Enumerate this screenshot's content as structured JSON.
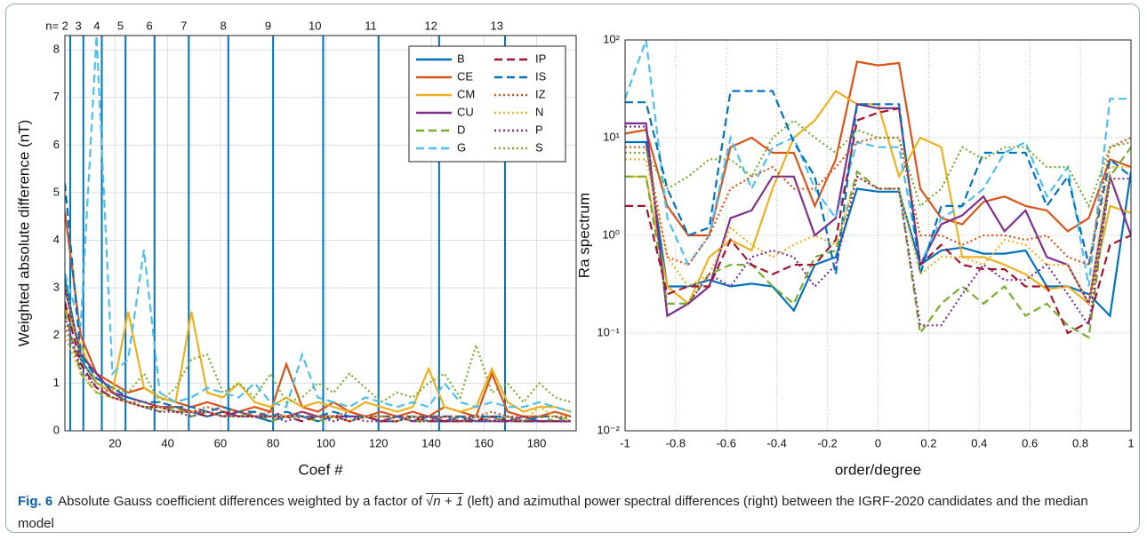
{
  "chart_data": [
    {
      "type": "line",
      "xlabel": "Coef #",
      "ylabel": "Weighted absolute difference (nT)",
      "xlim": [
        1,
        195
      ],
      "ylim": [
        0,
        8.3
      ],
      "xticks": [
        20,
        40,
        60,
        80,
        100,
        120,
        140,
        160,
        180
      ],
      "yticks": [
        0,
        1,
        2,
        3,
        4,
        5,
        6,
        7,
        8
      ],
      "grid": true,
      "legend": "upper right",
      "legend_columns": 2,
      "n_lines": [
        {
          "x": 3,
          "label": "n= 2"
        },
        {
          "x": 8,
          "label": "3"
        },
        {
          "x": 15,
          "label": "4"
        },
        {
          "x": 24,
          "label": "5"
        },
        {
          "x": 35,
          "label": "6"
        },
        {
          "x": 48,
          "label": "7"
        },
        {
          "x": 63,
          "label": "8"
        },
        {
          "x": 80,
          "label": "9"
        },
        {
          "x": 99,
          "label": "10"
        },
        {
          "x": 120,
          "label": "11"
        },
        {
          "x": 143,
          "label": "12"
        },
        {
          "x": 168,
          "label": "13"
        }
      ],
      "n_line_color": "#0072BD",
      "x": [
        1,
        7,
        13,
        19,
        25,
        31,
        37,
        43,
        49,
        55,
        61,
        67,
        73,
        79,
        85,
        91,
        97,
        103,
        109,
        115,
        121,
        127,
        133,
        139,
        145,
        151,
        157,
        163,
        169,
        175,
        181,
        187,
        193
      ],
      "series": [
        {
          "name": "B",
          "color": "#0072BD",
          "dash": "solid",
          "values": [
            3.2,
            1.5,
            1.0,
            0.8,
            0.6,
            0.5,
            0.5,
            0.4,
            0.4,
            0.3,
            0.4,
            0.3,
            0.3,
            0.2,
            0.3,
            0.3,
            0.2,
            0.3,
            0.2,
            0.3,
            0.2,
            0.2,
            0.3,
            0.2,
            0.2,
            0.3,
            0.2,
            0.2,
            0.3,
            0.2,
            0.2,
            0.2,
            0.2
          ]
        },
        {
          "name": "CE",
          "color": "#D95319",
          "dash": "solid",
          "values": [
            4.6,
            2.0,
            1.2,
            1.0,
            0.8,
            0.9,
            0.7,
            0.6,
            0.5,
            0.6,
            0.5,
            0.4,
            0.5,
            0.4,
            1.4,
            0.5,
            0.4,
            0.6,
            0.4,
            0.3,
            0.4,
            0.3,
            0.4,
            0.3,
            0.5,
            0.4,
            0.3,
            1.2,
            0.4,
            0.3,
            0.3,
            0.4,
            0.3
          ]
        },
        {
          "name": "CM",
          "color": "#EDB120",
          "dash": "solid",
          "values": [
            2.6,
            1.8,
            1.0,
            0.8,
            2.5,
            0.9,
            0.7,
            0.6,
            2.5,
            0.8,
            0.7,
            1.0,
            0.6,
            0.5,
            0.7,
            0.5,
            0.6,
            0.5,
            0.4,
            0.6,
            0.5,
            0.4,
            0.5,
            1.3,
            0.5,
            0.4,
            0.5,
            1.3,
            0.6,
            0.4,
            0.5,
            0.5,
            0.4
          ]
        },
        {
          "name": "CU",
          "color": "#7E2F8E",
          "dash": "solid",
          "values": [
            3.0,
            1.6,
            1.2,
            0.8,
            0.7,
            0.6,
            0.5,
            0.5,
            0.4,
            0.4,
            0.3,
            0.4,
            0.3,
            0.3,
            0.3,
            0.4,
            0.3,
            0.3,
            0.3,
            0.3,
            0.2,
            0.3,
            0.2,
            0.3,
            0.2,
            0.2,
            0.3,
            0.2,
            0.2,
            0.3,
            0.2,
            0.2,
            0.2
          ]
        },
        {
          "name": "D",
          "color": "#77AC30",
          "dash": "dashed",
          "values": [
            2.5,
            1.2,
            0.8,
            0.7,
            0.6,
            0.5,
            0.4,
            0.5,
            0.3,
            0.4,
            0.3,
            0.3,
            0.4,
            0.2,
            0.3,
            0.3,
            0.2,
            0.3,
            0.2,
            0.3,
            0.2,
            0.3,
            0.2,
            0.2,
            0.3,
            0.2,
            0.2,
            0.3,
            0.2,
            0.2,
            0.3,
            0.2,
            0.3
          ]
        },
        {
          "name": "G",
          "color": "#4DBEEE",
          "dash": "dashed",
          "values": [
            3.3,
            2.2,
            8.3,
            1.2,
            1.5,
            3.8,
            0.8,
            0.6,
            0.7,
            0.9,
            0.8,
            0.7,
            1.0,
            0.6,
            0.5,
            1.6,
            0.7,
            0.6,
            0.5,
            0.7,
            0.6,
            0.5,
            0.6,
            0.5,
            1.0,
            0.6,
            0.5,
            0.6,
            0.5,
            0.5,
            0.6,
            0.5,
            0.4
          ]
        },
        {
          "name": "IP",
          "color": "#A2142F",
          "dash": "dashed",
          "values": [
            2.7,
            1.4,
            0.9,
            0.7,
            0.6,
            0.5,
            0.5,
            0.4,
            0.4,
            0.3,
            0.4,
            0.3,
            0.3,
            0.3,
            0.3,
            0.2,
            0.3,
            0.3,
            0.2,
            0.3,
            0.2,
            0.2,
            0.3,
            0.2,
            0.2,
            0.2,
            0.2,
            0.3,
            0.2,
            0.2,
            0.2,
            0.2,
            0.2
          ]
        },
        {
          "name": "IS",
          "color": "#0072BD",
          "dash": "dashed",
          "values": [
            5.2,
            1.6,
            1.1,
            0.9,
            0.7,
            0.6,
            0.6,
            0.5,
            0.5,
            0.4,
            0.5,
            0.4,
            0.4,
            0.3,
            0.4,
            0.3,
            0.3,
            0.4,
            0.3,
            0.3,
            0.3,
            0.3,
            0.3,
            0.3,
            0.3,
            0.3,
            0.3,
            0.3,
            0.3,
            0.2,
            0.3,
            0.3,
            0.2
          ]
        },
        {
          "name": "IZ",
          "color": "#D95319",
          "dash": "dotted",
          "values": [
            2.2,
            1.3,
            0.9,
            0.8,
            0.6,
            0.6,
            0.5,
            0.5,
            0.4,
            0.5,
            0.4,
            0.4,
            0.3,
            0.4,
            0.3,
            0.4,
            0.3,
            0.3,
            0.4,
            0.3,
            0.3,
            0.3,
            0.3,
            0.3,
            0.3,
            0.3,
            0.3,
            0.4,
            0.3,
            0.3,
            0.3,
            0.3,
            0.3
          ]
        },
        {
          "name": "N",
          "color": "#EDB120",
          "dash": "dotted",
          "values": [
            2.0,
            1.2,
            0.8,
            0.7,
            0.6,
            0.5,
            0.5,
            0.4,
            0.4,
            0.4,
            0.3,
            0.3,
            0.3,
            0.3,
            0.3,
            0.3,
            0.3,
            0.3,
            0.2,
            0.3,
            0.3,
            0.2,
            0.3,
            0.2,
            0.3,
            0.2,
            0.3,
            0.2,
            0.3,
            0.2,
            0.5,
            0.3,
            0.2
          ]
        },
        {
          "name": "P",
          "color": "#7E2F8E",
          "dash": "dotted",
          "values": [
            2.4,
            1.3,
            0.9,
            0.7,
            0.6,
            0.5,
            0.4,
            0.4,
            0.3,
            0.4,
            0.3,
            0.3,
            0.3,
            0.3,
            0.2,
            0.3,
            0.3,
            0.2,
            0.3,
            0.2,
            0.2,
            0.3,
            0.2,
            0.2,
            0.3,
            0.2,
            0.2,
            0.2,
            0.2,
            0.2,
            0.2,
            0.2,
            0.2
          ]
        },
        {
          "name": "S",
          "color": "#77AC30",
          "dash": "dotted",
          "values": [
            3.1,
            1.5,
            1.0,
            0.9,
            0.8,
            1.2,
            0.6,
            0.9,
            1.5,
            1.6,
            0.8,
            1.0,
            0.7,
            1.2,
            0.6,
            0.7,
            1.0,
            0.8,
            1.2,
            0.9,
            0.6,
            0.8,
            0.7,
            1.0,
            1.2,
            0.7,
            1.8,
            0.8,
            1.0,
            0.6,
            1.0,
            0.7,
            0.6
          ]
        }
      ]
    },
    {
      "type": "line",
      "xlabel": "order/degree",
      "ylabel": "Ra spectrum",
      "log_y": true,
      "xlim": [
        -1,
        1
      ],
      "ylim": [
        0.01,
        100
      ],
      "xticks": [
        -1,
        -0.8,
        -0.6,
        -0.4,
        -0.2,
        0,
        0.2,
        0.4,
        0.6,
        0.8,
        1
      ],
      "yticks": [
        {
          "value": 0.01,
          "label": "10⁻²"
        },
        {
          "value": 0.1,
          "label": "10⁻¹"
        },
        {
          "value": 1,
          "label": "10⁰"
        },
        {
          "value": 10,
          "label": "10¹"
        },
        {
          "value": 100,
          "label": "10²"
        }
      ],
      "grid": true,
      "x": [
        -1,
        -0.917,
        -0.833,
        -0.75,
        -0.667,
        -0.583,
        -0.5,
        -0.417,
        -0.333,
        -0.25,
        -0.167,
        -0.083,
        0,
        0.083,
        0.167,
        0.25,
        0.333,
        0.417,
        0.5,
        0.583,
        0.667,
        0.75,
        0.833,
        0.917,
        1
      ],
      "series": [
        {
          "color": "#0072BD",
          "dash": "solid",
          "values": [
            9,
            9,
            0.3,
            0.3,
            0.35,
            0.3,
            0.32,
            0.3,
            0.17,
            0.5,
            0.6,
            3,
            2.8,
            2.8,
            0.5,
            0.7,
            0.75,
            0.65,
            0.65,
            0.7,
            0.3,
            0.3,
            0.25,
            0.15,
            4.5
          ]
        },
        {
          "color": "#D95319",
          "dash": "solid",
          "values": [
            11,
            12,
            2,
            1,
            1,
            8,
            10,
            7,
            7,
            2,
            6,
            60,
            55,
            58,
            3,
            1.5,
            1.3,
            2.2,
            2.5,
            2,
            1.8,
            1.1,
            1.5,
            6,
            5
          ]
        },
        {
          "color": "#EDB120",
          "dash": "solid",
          "values": [
            4,
            4,
            0.3,
            0.2,
            0.6,
            0.9,
            0.7,
            3,
            10,
            15,
            30,
            22,
            22,
            4,
            10,
            8,
            0.6,
            0.6,
            0.5,
            0.4,
            0.28,
            0.3,
            0.2,
            2,
            1.7
          ]
        },
        {
          "color": "#7E2F8E",
          "dash": "solid",
          "values": [
            14,
            14,
            0.15,
            0.2,
            0.3,
            1.5,
            1.8,
            4,
            4,
            1,
            1.5,
            22,
            20,
            20,
            0.5,
            1.3,
            1.6,
            2.5,
            1.1,
            1.8,
            0.6,
            0.5,
            0.2,
            4,
            1
          ]
        },
        {
          "color": "#77AC30",
          "dash": "dashed",
          "values": [
            4,
            4,
            0.2,
            0.2,
            0.4,
            0.5,
            0.5,
            0.3,
            0.2,
            0.6,
            0.7,
            4.5,
            3,
            3,
            0.1,
            0.2,
            0.3,
            0.2,
            0.3,
            0.15,
            0.2,
            0.12,
            0.09,
            4,
            8
          ]
        },
        {
          "color": "#4DBEEE",
          "dash": "dashed",
          "values": [
            25,
            100,
            1.5,
            0.5,
            1,
            10,
            3,
            8,
            10,
            3,
            1.5,
            9,
            8,
            8,
            0.5,
            1.5,
            2,
            3,
            7,
            9,
            2.5,
            5,
            0.3,
            25,
            25
          ]
        },
        {
          "color": "#A2142F",
          "dash": "dashed",
          "values": [
            2,
            2,
            0.25,
            0.3,
            0.3,
            0.9,
            0.5,
            0.4,
            0.5,
            0.5,
            0.9,
            15,
            18,
            20,
            0.5,
            0.8,
            0.5,
            0.45,
            0.45,
            0.3,
            0.3,
            0.1,
            0.13,
            0.8,
            1
          ]
        },
        {
          "color": "#0072BD",
          "dash": "dashed",
          "values": [
            23,
            23,
            3,
            1,
            1.2,
            30,
            30,
            30,
            9,
            4,
            0.4,
            22,
            22,
            22,
            0.4,
            2,
            2,
            7,
            7,
            7,
            2,
            4,
            0.5,
            6,
            4
          ]
        },
        {
          "color": "#D95319",
          "dash": "dotted",
          "values": [
            8,
            8,
            0.6,
            0.5,
            1,
            3,
            4,
            5,
            3,
            3,
            5,
            9,
            10,
            10,
            1,
            1,
            0.8,
            1,
            1,
            0.9,
            1,
            0.6,
            0.5,
            8,
            10
          ]
        },
        {
          "color": "#EDB120",
          "dash": "dotted",
          "values": [
            6,
            6,
            0.6,
            0.3,
            0.4,
            1.2,
            0.8,
            0.6,
            0.8,
            1,
            0.8,
            4,
            3,
            3,
            0.4,
            0.6,
            0.6,
            0.5,
            0.9,
            0.8,
            0.5,
            0.5,
            0.2,
            5,
            5
          ]
        },
        {
          "color": "#7E2F8E",
          "dash": "dotted",
          "values": [
            13,
            13,
            0.15,
            0.2,
            0.4,
            0.3,
            0.6,
            0.7,
            0.6,
            0.3,
            0.5,
            4,
            3,
            3,
            0.12,
            0.12,
            0.25,
            0.5,
            0.35,
            0.35,
            0.5,
            0.25,
            0.12,
            3.8,
            3.8
          ]
        },
        {
          "color": "#77AC30",
          "dash": "dotted",
          "values": [
            7,
            7,
            3,
            4,
            6,
            6,
            4,
            10,
            15,
            10,
            7,
            12,
            10,
            10,
            2,
            3,
            8,
            6,
            8,
            8,
            5,
            5,
            2,
            8,
            9
          ]
        }
      ]
    }
  ],
  "caption": {
    "label": "Fig. 6",
    "text_before": "Absolute Gauss coefficient differences weighted by a factor of",
    "formula": "√n + 1",
    "text_after": "(left) and azimuthal power spectral differences (right) between the IGRF-2020 candidates and the median model"
  }
}
